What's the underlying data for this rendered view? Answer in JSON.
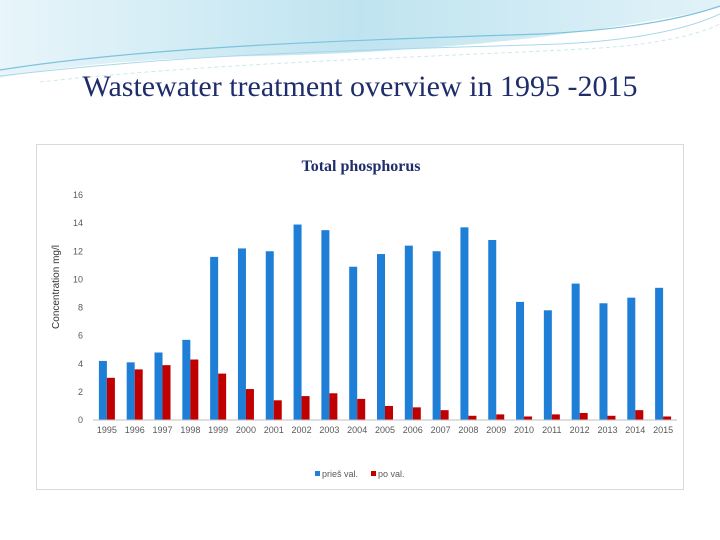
{
  "slide": {
    "title": "Wastewater treatment overview in 1995 -2015"
  },
  "colors": {
    "series_before": "#1f7fd6",
    "series_after": "#c00000",
    "title": "#1f2d6b",
    "swoosh": "#9fd3e6"
  },
  "chart_data": {
    "type": "bar",
    "title": "Total phosphorus",
    "xlabel": "",
    "ylabel": "Concentration mg/l",
    "ylim": [
      0,
      16
    ],
    "yticks": [
      0,
      2,
      4,
      6,
      8,
      10,
      12,
      14,
      16
    ],
    "grid": false,
    "legend_position": "bottom",
    "categories": [
      "1995",
      "1996",
      "1997",
      "1998",
      "1999",
      "2000",
      "2001",
      "2002",
      "2003",
      "2004",
      "2005",
      "2006",
      "2007",
      "2008",
      "2009",
      "2010",
      "2011",
      "2012",
      "2013",
      "2014",
      "2015"
    ],
    "series": [
      {
        "name": "prieš val.",
        "color": "#1f7fd6",
        "values": [
          4.2,
          4.1,
          4.8,
          5.7,
          11.6,
          12.2,
          12.0,
          13.9,
          13.5,
          10.9,
          11.8,
          12.4,
          12.0,
          13.7,
          12.8,
          8.4,
          7.8,
          9.7,
          8.3,
          8.7,
          9.4
        ]
      },
      {
        "name": "po val.",
        "color": "#c00000",
        "values": [
          3.0,
          3.6,
          3.9,
          4.3,
          3.3,
          2.2,
          1.4,
          1.7,
          1.9,
          1.5,
          1.0,
          0.9,
          0.7,
          0.3,
          0.4,
          0.25,
          0.4,
          0.5,
          0.3,
          0.7,
          0.25
        ]
      }
    ]
  }
}
